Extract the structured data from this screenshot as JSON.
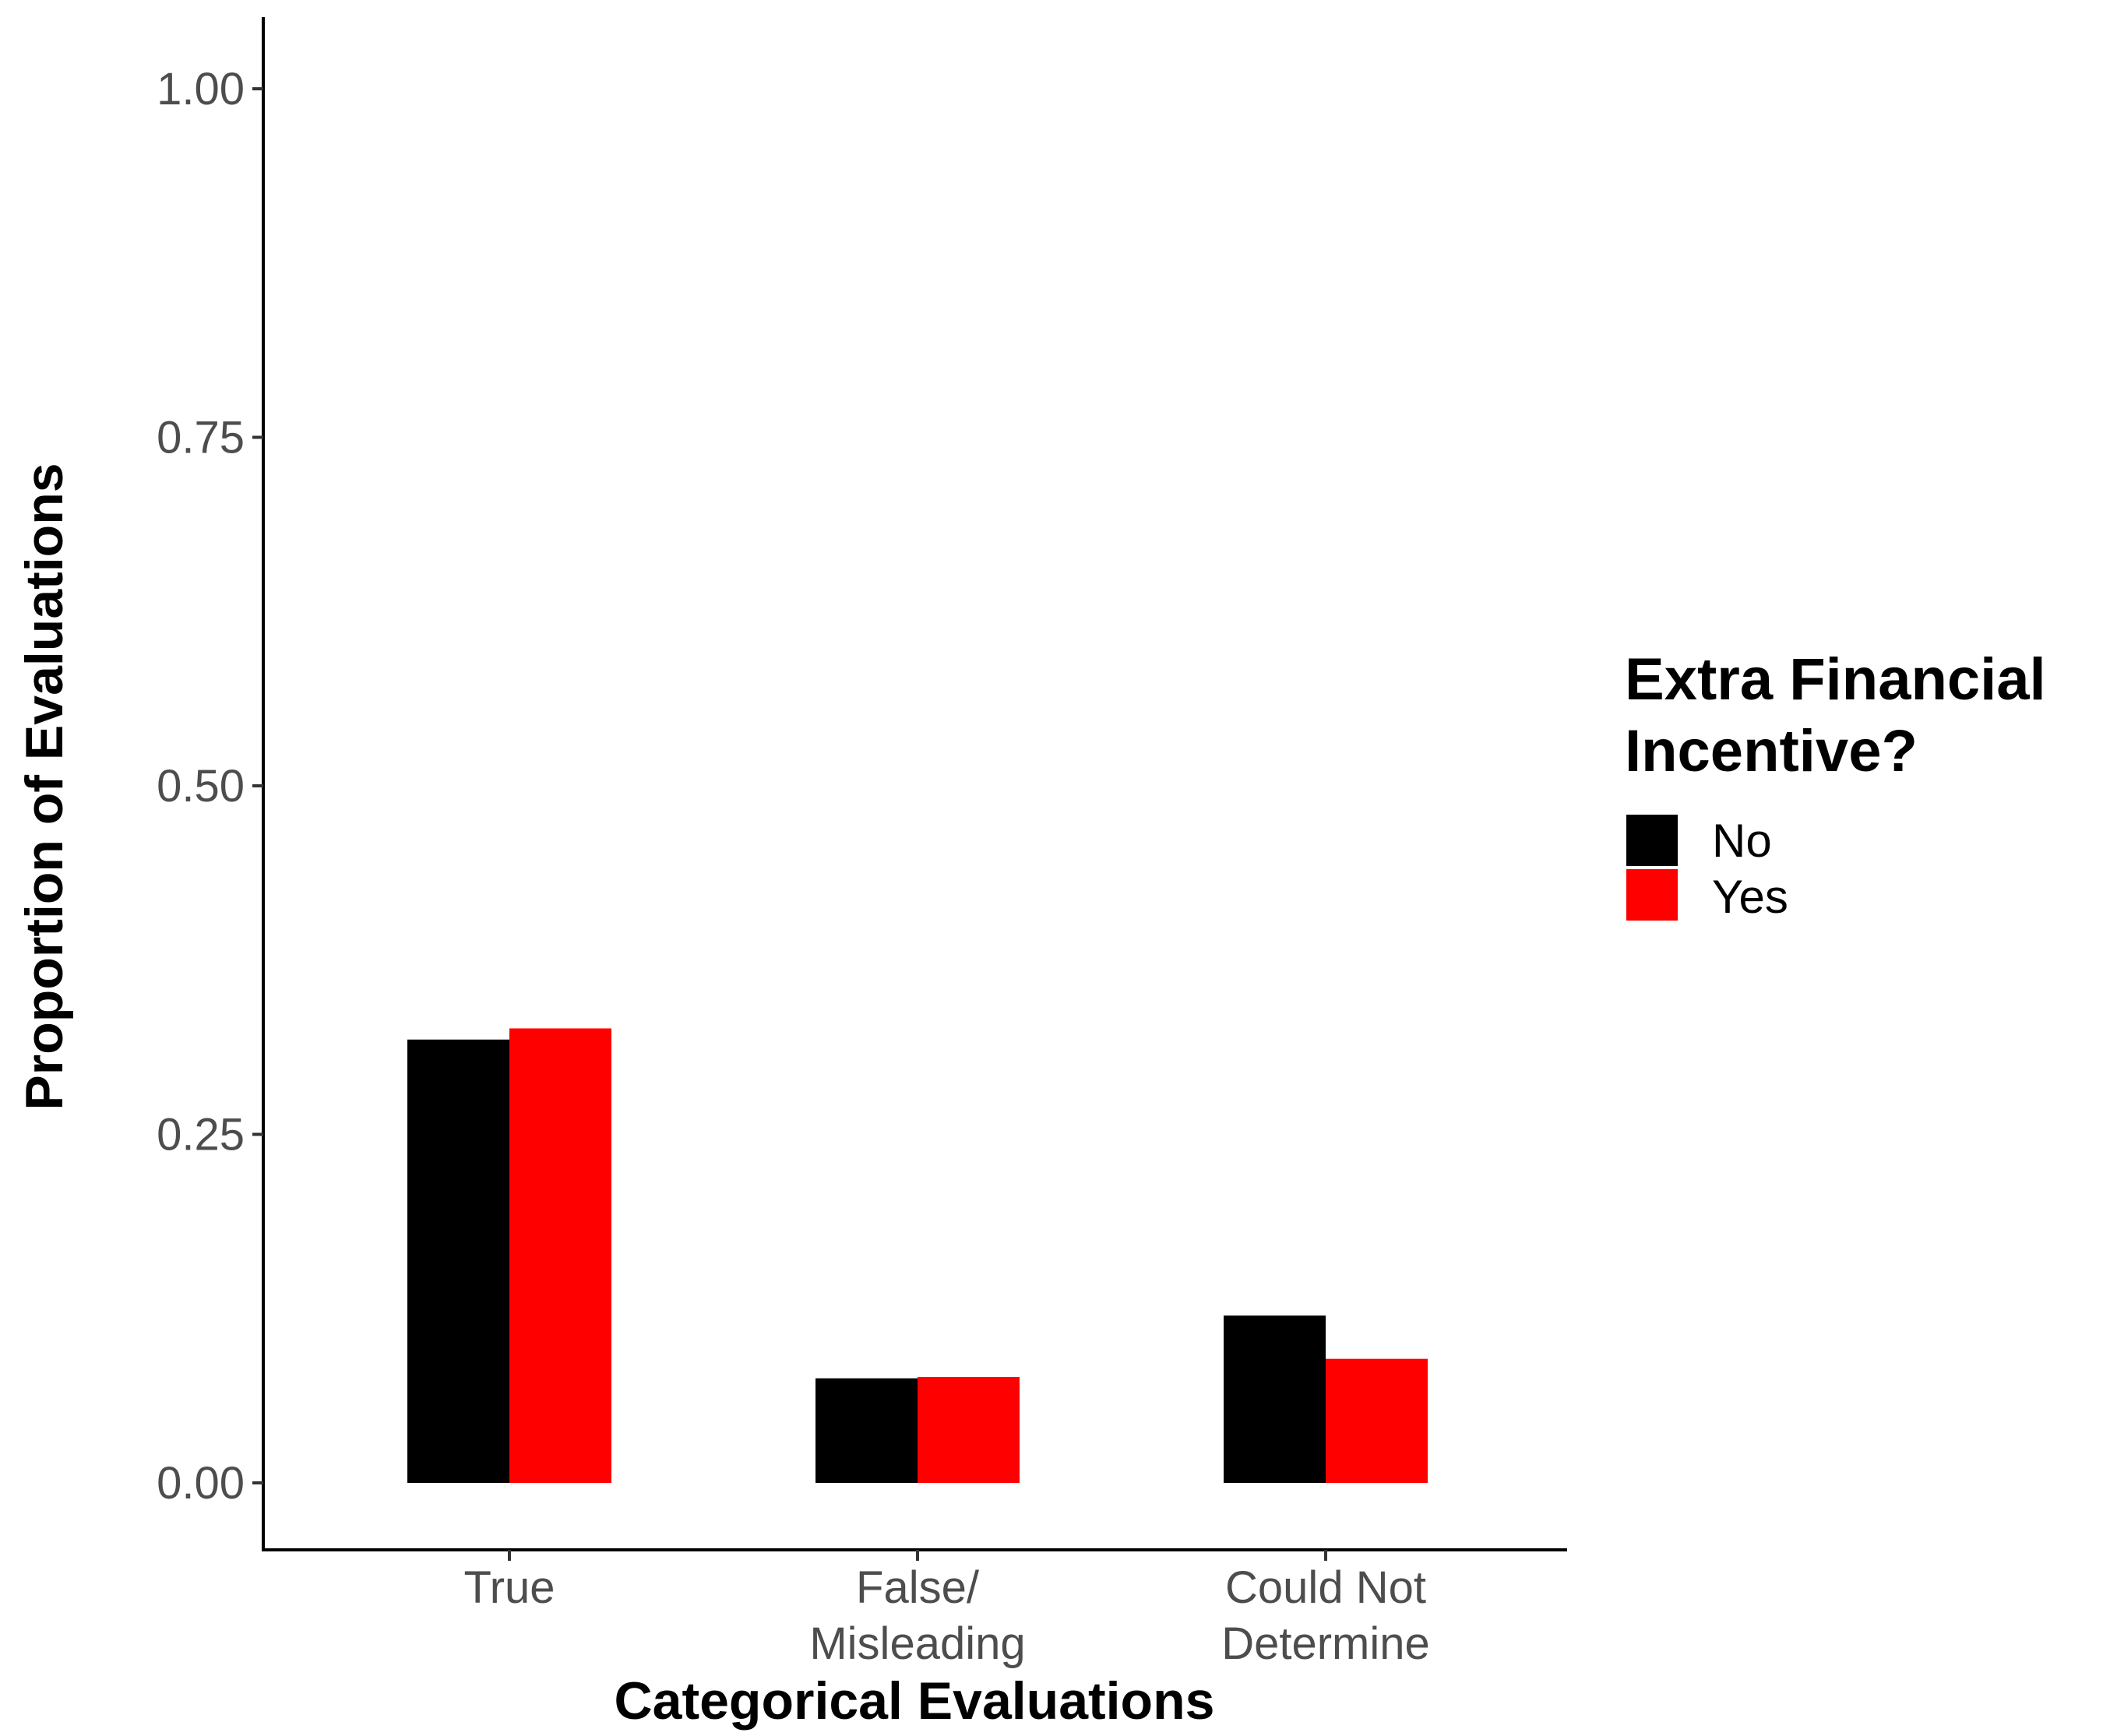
{
  "chart_data": {
    "type": "bar",
    "title": "",
    "xlabel": "Categorical Evaluations",
    "ylabel": "Proportion of Evaluations",
    "categories": [
      [
        "True"
      ],
      [
        "False/",
        "Misleading"
      ],
      [
        "Could Not",
        "Determine"
      ]
    ],
    "series": [
      {
        "name": "No",
        "color": "#000000",
        "values": [
          0.318,
          0.075,
          0.12
        ]
      },
      {
        "name": "Yes",
        "color": "#ff0000",
        "values": [
          0.326,
          0.076,
          0.089
        ]
      }
    ],
    "ylim": [
      -0.05,
      1.05
    ],
    "yticks": [
      0.0,
      0.25,
      0.5,
      0.75,
      1.0
    ],
    "ytick_labels": [
      "0.00",
      "0.25",
      "0.50",
      "0.75",
      "1.00"
    ],
    "grid": false,
    "legend": {
      "title": [
        "Extra Financial",
        "Incentive?"
      ],
      "position": "right"
    }
  }
}
